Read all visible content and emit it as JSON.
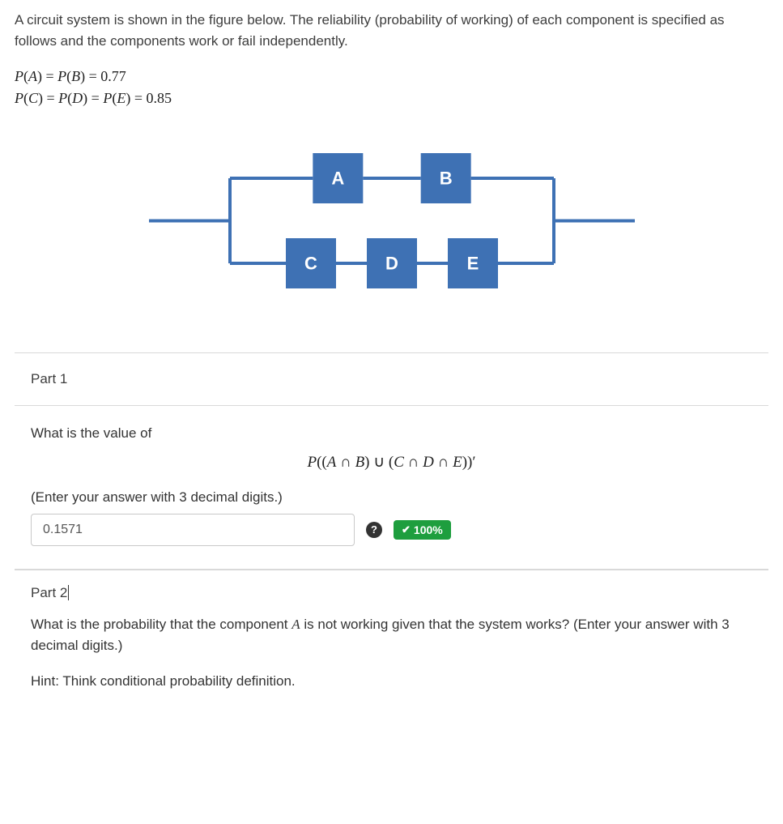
{
  "intro": "A circuit system is shown in the figure below. The reliability (probability of working) of each component is specified as follows and the components work or fail independently.",
  "equations": {
    "line1": "P(A) = P(B) = 0.77",
    "line2": "P(C) = P(D) = P(E) = 0.85"
  },
  "diagram": {
    "type": "circuit-parallel-series",
    "top_branch": [
      "A",
      "B"
    ],
    "bottom_branch": [
      "C",
      "D",
      "E"
    ],
    "node_fill": "#3e71b4",
    "node_text_color": "#ffffff",
    "wire_color": "#3e71b4",
    "wire_width": 4,
    "node_size": 62,
    "font_size": 22
  },
  "part1": {
    "header": "Part 1",
    "question_lead": "What is the value of",
    "formula": "P((A ∩ B) ∪ (C ∩ D ∩ E))′",
    "instruction": "(Enter your answer with 3 decimal digits.)",
    "answer_value": "0.1571",
    "score_text": "100%"
  },
  "part2": {
    "header": "Part 2",
    "question_before_var": "What is the probability that the component ",
    "var": "A",
    "question_after_var": " is not working given that the system works? (Enter your answer with 3 decimal digits.)",
    "hint": "Hint: Think conditional probability definition."
  }
}
